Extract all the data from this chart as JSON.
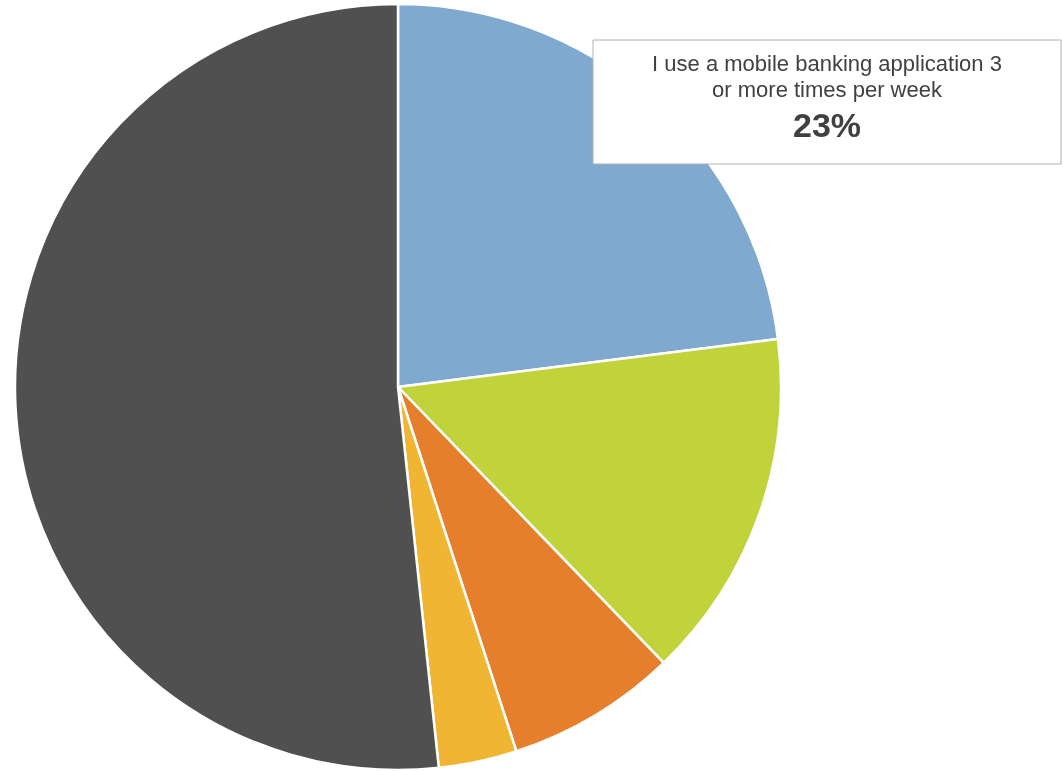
{
  "chart_data": {
    "type": "pie",
    "categories": [
      "I use a mobile banking application 3 or more times per week",
      null,
      null,
      null,
      null
    ],
    "values": [
      23,
      14.8,
      7.2,
      3.3,
      51.7
    ],
    "colors": [
      "#7fa9cf",
      "#c1d33a",
      "#e67f2b",
      "#f1b534",
      "#505050"
    ],
    "value_labels": [
      "23%",
      null,
      null,
      null,
      null
    ]
  }
}
